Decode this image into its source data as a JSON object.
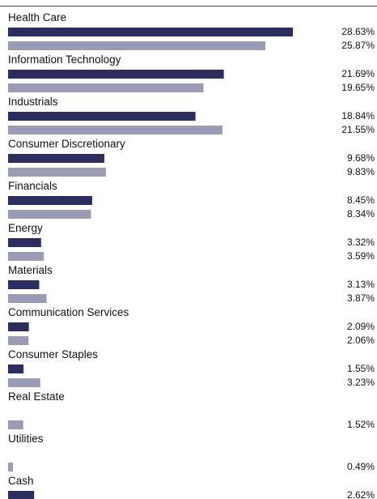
{
  "chart_data": {
    "type": "bar",
    "orientation": "horizontal",
    "categories": [
      "Health Care",
      "Information Technology",
      "Industrials",
      "Consumer Discretionary",
      "Financials",
      "Energy",
      "Materials",
      "Communication Services",
      "Consumer Staples",
      "Real Estate",
      "Utilities",
      "Cash"
    ],
    "series": [
      {
        "color": "#2b2d5e",
        "values": [
          28.63,
          21.69,
          18.84,
          9.68,
          8.45,
          3.32,
          3.13,
          2.09,
          1.55,
          null,
          null,
          2.62
        ],
        "labels": [
          "28.63%",
          "21.69%",
          "18.84%",
          "9.68%",
          "8.45%",
          "3.32%",
          "3.13%",
          "2.09%",
          "1.55%",
          "",
          "",
          "2.62%"
        ]
      },
      {
        "color": "#9a9bb5",
        "values": [
          25.87,
          19.65,
          21.55,
          9.83,
          8.34,
          3.59,
          3.87,
          2.06,
          3.23,
          1.52,
          0.49,
          null
        ],
        "labels": [
          "25.87%",
          "19.65%",
          "21.55%",
          "9.83%",
          "8.34%",
          "3.59%",
          "3.87%",
          "2.06%",
          "3.23%",
          "1.52%",
          "0.49%",
          ""
        ]
      }
    ],
    "xlim": [
      0,
      28.63
    ],
    "grid": false,
    "legend": "none"
  }
}
